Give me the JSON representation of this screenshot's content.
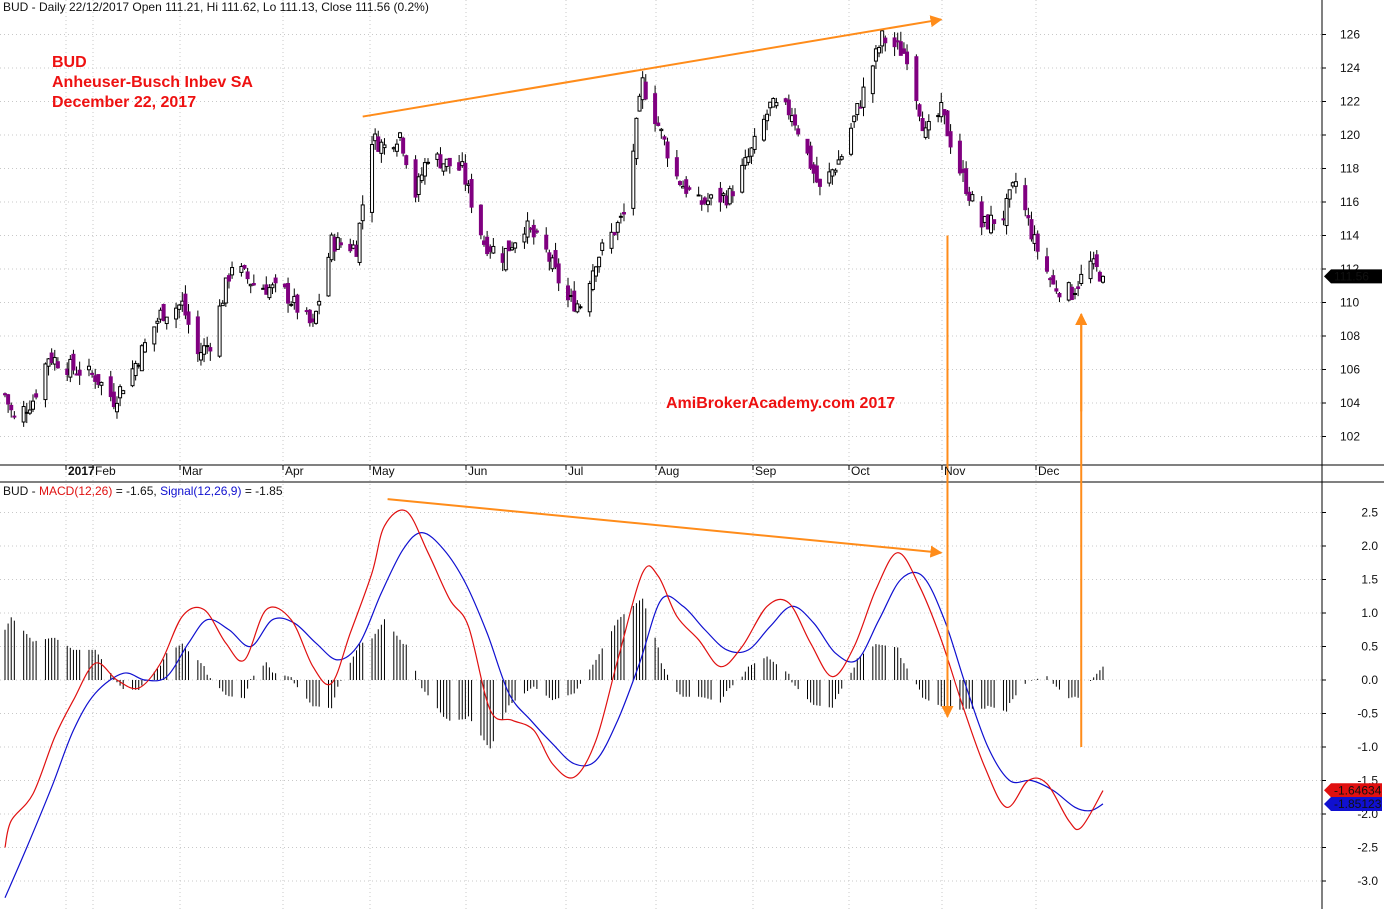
{
  "price_panel": {
    "header": "BUD - Daily 22/12/2017 Open 111.21, Hi 111.62, Lo 111.13, Close 111.56 (0.2%)",
    "annotation": {
      "line1": "BUD",
      "line2": "Anheuser-Busch Inbev SA",
      "line3": "December 22, 2017"
    },
    "watermark": "AmiBrokerAcademy.com  2017",
    "last_price_label": "111.56"
  },
  "macd_panel": {
    "header_prefix": "BUD - ",
    "header_macd": "MACD(12,26)",
    "header_macd_value": " = -1.65, ",
    "header_signal": "Signal(12,26,9)",
    "header_signal_value": " = -1.85",
    "macd_value_label": "-1.64634",
    "signal_value_label": "-1.85123"
  },
  "colors": {
    "up_candle": "#ffffff",
    "down_candle": "#800080",
    "macd_line": "#e01010",
    "signal_line": "#1010d0",
    "trendline": "#ff8c1a",
    "annotation_text": "#ee1111",
    "grid": "#c8c8c8"
  },
  "chart_data": [
    {
      "type": "candlestick",
      "title": "BUD - Daily 22/12/2017",
      "y_ticks": [
        102,
        104,
        106,
        108,
        110,
        112,
        114,
        116,
        118,
        120,
        122,
        124,
        126
      ],
      "ylim": [
        100.3,
        127.5
      ],
      "x_ticks": [
        "2017",
        "Feb",
        "Mar",
        "Apr",
        "May",
        "Jun",
        "Jul",
        "Aug",
        "Sep",
        "Oct",
        "Nov",
        "Dec"
      ],
      "grid": true,
      "last": {
        "date": "2017-12-22",
        "open": 111.21,
        "high": 111.62,
        "low": 111.13,
        "close": 111.56
      },
      "close_waypoints": [
        {
          "date": "2017-01-03",
          "close": 104.5
        },
        {
          "date": "2017-01-06",
          "close": 103.0
        },
        {
          "date": "2017-01-12",
          "close": 104.2
        },
        {
          "date": "2017-01-17",
          "close": 106.8
        },
        {
          "date": "2017-01-24",
          "close": 106.1
        },
        {
          "date": "2017-02-01",
          "close": 105.6
        },
        {
          "date": "2017-02-07",
          "close": 104.2
        },
        {
          "date": "2017-02-13",
          "close": 106.0
        },
        {
          "date": "2017-02-22",
          "close": 109.3
        },
        {
          "date": "2017-03-01",
          "close": 109.9
        },
        {
          "date": "2017-03-06",
          "close": 106.9
        },
        {
          "date": "2017-03-10",
          "close": 107.6
        },
        {
          "date": "2017-03-17",
          "close": 112.3
        },
        {
          "date": "2017-03-24",
          "close": 111.1
        },
        {
          "date": "2017-04-03",
          "close": 110.6
        },
        {
          "date": "2017-04-12",
          "close": 108.5
        },
        {
          "date": "2017-04-18",
          "close": 113.6
        },
        {
          "date": "2017-04-26",
          "close": 113.3
        },
        {
          "date": "2017-05-01",
          "close": 119.8
        },
        {
          "date": "2017-05-05",
          "close": 119.3
        },
        {
          "date": "2017-05-10",
          "close": 120.1
        },
        {
          "date": "2017-05-15",
          "close": 116.5
        },
        {
          "date": "2017-05-19",
          "close": 118.8
        },
        {
          "date": "2017-05-30",
          "close": 117.9
        },
        {
          "date": "2017-06-06",
          "close": 113.6
        },
        {
          "date": "2017-06-12",
          "close": 112.8
        },
        {
          "date": "2017-06-19",
          "close": 114.6
        },
        {
          "date": "2017-06-26",
          "close": 113.0
        },
        {
          "date": "2017-07-03",
          "close": 110.1
        },
        {
          "date": "2017-07-07",
          "close": 109.9
        },
        {
          "date": "2017-07-12",
          "close": 112.6
        },
        {
          "date": "2017-07-21",
          "close": 115.2
        },
        {
          "date": "2017-07-27",
          "close": 123.1
        },
        {
          "date": "2017-08-01",
          "close": 120.6
        },
        {
          "date": "2017-08-07",
          "close": 117.5
        },
        {
          "date": "2017-08-14",
          "close": 115.9
        },
        {
          "date": "2017-08-24",
          "close": 116.4
        },
        {
          "date": "2017-08-31",
          "close": 119.0
        },
        {
          "date": "2017-09-06",
          "close": 121.7
        },
        {
          "date": "2017-09-13",
          "close": 121.4
        },
        {
          "date": "2017-09-22",
          "close": 116.7
        },
        {
          "date": "2017-09-29",
          "close": 118.8
        },
        {
          "date": "2017-10-06",
          "close": 122.6
        },
        {
          "date": "2017-10-12",
          "close": 125.8
        },
        {
          "date": "2017-10-20",
          "close": 124.8
        },
        {
          "date": "2017-10-26",
          "close": 120.0
        },
        {
          "date": "2017-10-31",
          "close": 121.4
        },
        {
          "date": "2017-11-06",
          "close": 117.9
        },
        {
          "date": "2017-11-13",
          "close": 114.6
        },
        {
          "date": "2017-11-20",
          "close": 115.2
        },
        {
          "date": "2017-11-24",
          "close": 117.2
        },
        {
          "date": "2017-11-30",
          "close": 113.6
        },
        {
          "date": "2017-12-06",
          "close": 111.0
        },
        {
          "date": "2017-12-12",
          "close": 110.6
        },
        {
          "date": "2017-12-18",
          "close": 112.3
        },
        {
          "date": "2017-12-22",
          "close": 111.56
        }
      ],
      "annotations": [
        {
          "type": "trendline",
          "from": {
            "date": "2017-04-28",
            "value": 121.1
          },
          "to": {
            "date": "2017-10-31",
            "value": 126.9
          }
        },
        {
          "type": "arrow",
          "from": {
            "date": "2017-11-02",
            "value": 114.0
          },
          "to": {
            "date": "2017-11-02",
            "value": 98.5
          }
        },
        {
          "type": "arrow",
          "from": {
            "date": "2017-12-15",
            "value": 103.5
          },
          "to": {
            "date": "2017-12-15",
            "value": 109.3
          }
        }
      ]
    },
    {
      "type": "line",
      "title": "MACD(12,26) / Signal(12,26,9)",
      "y_ticks": [
        -3.0,
        -2.5,
        -2.0,
        -1.5,
        -1.0,
        -0.5,
        0.0,
        0.5,
        1.0,
        1.5,
        2.0,
        2.5
      ],
      "ylim": [
        -3.3,
        2.85
      ],
      "series": [
        {
          "name": "MACD(12,26)",
          "color": "#e01010",
          "last_value": -1.64634,
          "points": [
            {
              "date": "2017-01-03",
              "value": -2.5
            },
            {
              "date": "2017-01-05",
              "value": -2.1
            },
            {
              "date": "2017-01-12",
              "value": -1.7
            },
            {
              "date": "2017-01-19",
              "value": -0.85
            },
            {
              "date": "2017-01-25",
              "value": -0.3
            },
            {
              "date": "2017-02-01",
              "value": 0.25
            },
            {
              "date": "2017-02-08",
              "value": 0.0
            },
            {
              "date": "2017-02-15",
              "value": -0.12
            },
            {
              "date": "2017-02-22",
              "value": 0.25
            },
            {
              "date": "2017-03-01",
              "value": 0.95
            },
            {
              "date": "2017-03-08",
              "value": 1.05
            },
            {
              "date": "2017-03-15",
              "value": 0.55
            },
            {
              "date": "2017-03-21",
              "value": 0.3
            },
            {
              "date": "2017-03-28",
              "value": 1.05
            },
            {
              "date": "2017-04-05",
              "value": 0.9
            },
            {
              "date": "2017-04-12",
              "value": 0.2
            },
            {
              "date": "2017-04-18",
              "value": -0.05
            },
            {
              "date": "2017-04-24",
              "value": 0.7
            },
            {
              "date": "2017-05-01",
              "value": 1.6
            },
            {
              "date": "2017-05-05",
              "value": 2.3
            },
            {
              "date": "2017-05-12",
              "value": 2.52
            },
            {
              "date": "2017-05-19",
              "value": 1.9
            },
            {
              "date": "2017-05-26",
              "value": 1.2
            },
            {
              "date": "2017-06-01",
              "value": 0.8
            },
            {
              "date": "2017-06-08",
              "value": -0.45
            },
            {
              "date": "2017-06-15",
              "value": -0.6
            },
            {
              "date": "2017-06-22",
              "value": -0.75
            },
            {
              "date": "2017-06-28",
              "value": -1.25
            },
            {
              "date": "2017-07-05",
              "value": -1.45
            },
            {
              "date": "2017-07-12",
              "value": -0.9
            },
            {
              "date": "2017-07-19",
              "value": 0.3
            },
            {
              "date": "2017-07-27",
              "value": 1.6
            },
            {
              "date": "2017-08-01",
              "value": 1.55
            },
            {
              "date": "2017-08-07",
              "value": 0.95
            },
            {
              "date": "2017-08-14",
              "value": 0.6
            },
            {
              "date": "2017-08-21",
              "value": 0.2
            },
            {
              "date": "2017-08-28",
              "value": 0.5
            },
            {
              "date": "2017-09-05",
              "value": 1.1
            },
            {
              "date": "2017-09-12",
              "value": 1.15
            },
            {
              "date": "2017-09-19",
              "value": 0.55
            },
            {
              "date": "2017-09-26",
              "value": 0.05
            },
            {
              "date": "2017-10-03",
              "value": 0.5
            },
            {
              "date": "2017-10-10",
              "value": 1.35
            },
            {
              "date": "2017-10-17",
              "value": 1.9
            },
            {
              "date": "2017-10-24",
              "value": 1.4
            },
            {
              "date": "2017-10-31",
              "value": 0.6
            },
            {
              "date": "2017-11-07",
              "value": -0.4
            },
            {
              "date": "2017-11-14",
              "value": -1.3
            },
            {
              "date": "2017-11-21",
              "value": -1.9
            },
            {
              "date": "2017-11-28",
              "value": -1.5
            },
            {
              "date": "2017-12-04",
              "value": -1.55
            },
            {
              "date": "2017-12-11",
              "value": -2.1
            },
            {
              "date": "2017-12-15",
              "value": -2.2
            },
            {
              "date": "2017-12-22",
              "value": -1.65
            }
          ]
        },
        {
          "name": "Signal(12,26,9)",
          "color": "#1010d0",
          "last_value": -1.85123,
          "points": [
            {
              "date": "2017-01-03",
              "value": -3.25
            },
            {
              "date": "2017-01-10",
              "value": -2.5
            },
            {
              "date": "2017-01-18",
              "value": -1.6
            },
            {
              "date": "2017-01-25",
              "value": -0.75
            },
            {
              "date": "2017-02-01",
              "value": -0.2
            },
            {
              "date": "2017-02-10",
              "value": 0.1
            },
            {
              "date": "2017-02-17",
              "value": 0.0
            },
            {
              "date": "2017-02-24",
              "value": 0.05
            },
            {
              "date": "2017-03-03",
              "value": 0.55
            },
            {
              "date": "2017-03-09",
              "value": 0.9
            },
            {
              "date": "2017-03-16",
              "value": 0.75
            },
            {
              "date": "2017-03-23",
              "value": 0.5
            },
            {
              "date": "2017-03-30",
              "value": 0.9
            },
            {
              "date": "2017-04-06",
              "value": 0.85
            },
            {
              "date": "2017-04-13",
              "value": 0.55
            },
            {
              "date": "2017-04-20",
              "value": 0.3
            },
            {
              "date": "2017-04-27",
              "value": 0.55
            },
            {
              "date": "2017-05-04",
              "value": 1.3
            },
            {
              "date": "2017-05-11",
              "value": 1.95
            },
            {
              "date": "2017-05-17",
              "value": 2.2
            },
            {
              "date": "2017-05-24",
              "value": 1.95
            },
            {
              "date": "2017-05-31",
              "value": 1.45
            },
            {
              "date": "2017-06-07",
              "value": 0.7
            },
            {
              "date": "2017-06-14",
              "value": -0.2
            },
            {
              "date": "2017-06-21",
              "value": -0.6
            },
            {
              "date": "2017-06-28",
              "value": -0.95
            },
            {
              "date": "2017-07-05",
              "value": -1.25
            },
            {
              "date": "2017-07-12",
              "value": -1.2
            },
            {
              "date": "2017-07-19",
              "value": -0.6
            },
            {
              "date": "2017-07-26",
              "value": 0.25
            },
            {
              "date": "2017-08-02",
              "value": 1.2
            },
            {
              "date": "2017-08-09",
              "value": 1.1
            },
            {
              "date": "2017-08-16",
              "value": 0.75
            },
            {
              "date": "2017-08-23",
              "value": 0.45
            },
            {
              "date": "2017-08-30",
              "value": 0.45
            },
            {
              "date": "2017-09-06",
              "value": 0.8
            },
            {
              "date": "2017-09-13",
              "value": 1.1
            },
            {
              "date": "2017-09-20",
              "value": 0.85
            },
            {
              "date": "2017-09-27",
              "value": 0.4
            },
            {
              "date": "2017-10-04",
              "value": 0.3
            },
            {
              "date": "2017-10-11",
              "value": 0.9
            },
            {
              "date": "2017-10-18",
              "value": 1.5
            },
            {
              "date": "2017-10-25",
              "value": 1.55
            },
            {
              "date": "2017-11-01",
              "value": 0.9
            },
            {
              "date": "2017-11-08",
              "value": -0.1
            },
            {
              "date": "2017-11-15",
              "value": -1.0
            },
            {
              "date": "2017-11-22",
              "value": -1.5
            },
            {
              "date": "2017-11-29",
              "value": -1.5
            },
            {
              "date": "2017-12-06",
              "value": -1.65
            },
            {
              "date": "2017-12-13",
              "value": -1.9
            },
            {
              "date": "2017-12-18",
              "value": -1.95
            },
            {
              "date": "2017-12-22",
              "value": -1.85
            }
          ]
        }
      ],
      "histogram": "MACD minus Signal",
      "annotations": [
        {
          "type": "trendline",
          "from": {
            "date": "2017-05-06",
            "value": 2.7
          },
          "to": {
            "date": "2017-10-31",
            "value": 1.9
          }
        },
        {
          "type": "arrow",
          "from": {
            "date": "2017-12-15",
            "value": -1.0
          },
          "to": {
            "date": "2017-12-15",
            "value": 0.0
          }
        }
      ]
    }
  ]
}
